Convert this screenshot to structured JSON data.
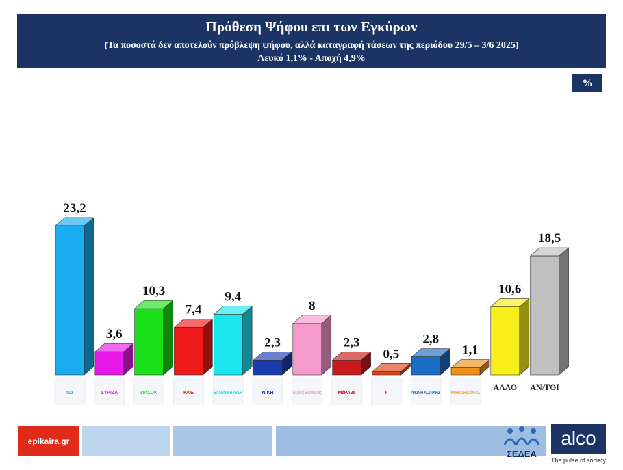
{
  "chart_data": {
    "type": "bar3d",
    "title": "Πρόθεση Ψήφου επι των Εγκύρων",
    "subtitle": "(Τα ποσοστά δεν αποτελούν πρόβλεψη ψήφου, αλλά καταγραφή τάσεων της περιόδου  29/5 – 3/6 2025)",
    "note": "Λευκό 1,1% - Αποχή 4,9%",
    "unit": "%",
    "categories": [
      "ΝΔ",
      "ΣΥΡΙΖΑ",
      "ΠΑΣΟΚ",
      "ΚΚΕ",
      "ΕΛΛΗΝΙΚΗ ΛΥΣΗ",
      "ΝΙΚΗ",
      "Πλεύση Ελευθερίας",
      "ΜέΡΑ25",
      "κ",
      "ΦΩΝΗ ΛΟΓΙΚΗΣ",
      "ΚΙΝΗΜΑ ΔΗΜΟΚΡΑΤΙΑΣ",
      "ΑΛΛΟ",
      "ΑΝ/ΤΟΙ"
    ],
    "values": [
      23.2,
      3.6,
      10.3,
      7.4,
      9.4,
      2.3,
      8,
      2.3,
      0.5,
      2.8,
      1.1,
      10.6,
      18.5
    ],
    "value_labels": [
      "23,2",
      "3,6",
      "10,3",
      "7,4",
      "9,4",
      "2,3",
      "8",
      "2,3",
      "0,5",
      "2,8",
      "1,1",
      "10,6",
      "18,5"
    ],
    "colors": [
      "#1aaef0",
      "#e818e8",
      "#1ae01a",
      "#f01a1a",
      "#1ae6f0",
      "#1a3cb0",
      "#f59acb",
      "#c81a1a",
      "#e0441a",
      "#1a6ec8",
      "#f0921a",
      "#f8ee1a",
      "#c0c0c0"
    ]
  },
  "footer": {
    "source": "epikaira.gr",
    "sedea": "ΣΕΔΕΑ",
    "brand": "alco",
    "tagline": "The pulse of society"
  }
}
